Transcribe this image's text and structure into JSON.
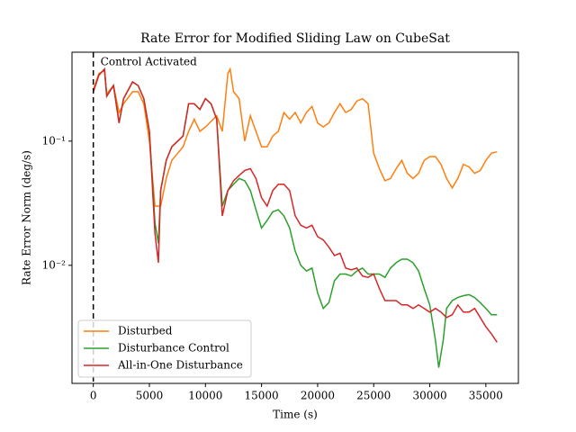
{
  "chart_data": {
    "type": "line",
    "title": "Rate Error for Modified Sliding Law on CubeSat",
    "xlabel": "Time (s)",
    "ylabel": "Rate Error Norm (deg/s)",
    "xlim": [
      -1900,
      37900
    ],
    "ylim": [
      0.00112,
      0.52
    ],
    "yscale": "log",
    "xticks": [
      0,
      5000,
      10000,
      15000,
      20000,
      25000,
      30000,
      35000
    ],
    "yticks": [
      {
        "value": 0.1,
        "label": "10⁻¹"
      },
      {
        "value": 0.01,
        "label": "10⁻²"
      }
    ],
    "annotation": {
      "text": "Control Activated",
      "x": 0
    },
    "legend": "lower left",
    "series": [
      {
        "name": "Disturbed",
        "color": "#ff7f0e",
        "x": [
          0,
          500,
          1000,
          1200,
          1800,
          2300,
          2700,
          3500,
          4000,
          4500,
          5000,
          5500,
          6000,
          6500,
          7000,
          8000,
          8500,
          9000,
          9500,
          10000,
          11000,
          11500,
          12000,
          12200,
          12500,
          13000,
          13500,
          14000,
          14500,
          15000,
          15500,
          16000,
          16500,
          17000,
          17500,
          18000,
          18500,
          19000,
          19500,
          20000,
          20500,
          21000,
          21500,
          22000,
          22500,
          23000,
          23500,
          24000,
          24500,
          25000,
          25500,
          26000,
          26500,
          27000,
          27500,
          28000,
          28500,
          29000,
          29500,
          30000,
          30500,
          31000,
          31500,
          32000,
          32500,
          33000,
          33500,
          34000,
          34500,
          35000,
          35500,
          36000
        ],
        "values": [
          0.26,
          0.35,
          0.37,
          0.24,
          0.28,
          0.17,
          0.2,
          0.25,
          0.25,
          0.2,
          0.1,
          0.03,
          0.03,
          0.05,
          0.07,
          0.09,
          0.12,
          0.15,
          0.12,
          0.13,
          0.16,
          0.12,
          0.35,
          0.38,
          0.25,
          0.22,
          0.1,
          0.16,
          0.12,
          0.09,
          0.09,
          0.11,
          0.12,
          0.17,
          0.15,
          0.17,
          0.14,
          0.17,
          0.19,
          0.14,
          0.13,
          0.14,
          0.17,
          0.2,
          0.17,
          0.18,
          0.21,
          0.22,
          0.2,
          0.08,
          0.06,
          0.048,
          0.05,
          0.06,
          0.07,
          0.055,
          0.05,
          0.055,
          0.07,
          0.075,
          0.075,
          0.065,
          0.05,
          0.042,
          0.05,
          0.065,
          0.062,
          0.055,
          0.058,
          0.07,
          0.08,
          0.082
        ]
      },
      {
        "name": "Disturbance Control",
        "color": "#2ca02c",
        "x": [
          0,
          500,
          1000,
          1200,
          1800,
          2300,
          2700,
          3500,
          4000,
          4500,
          5000,
          5500,
          5800,
          6000,
          6500,
          7000,
          8000,
          8500,
          9000,
          9500,
          10000,
          10500,
          11000,
          11500,
          12000,
          12500,
          13000,
          13500,
          14000,
          14500,
          15000,
          15500,
          16000,
          16500,
          17000,
          17500,
          18000,
          18500,
          19000,
          19500,
          20000,
          20500,
          21000,
          21500,
          22000,
          22500,
          23000,
          23500,
          24000,
          24500,
          25000,
          25500,
          26000,
          26500,
          27000,
          27500,
          28000,
          28500,
          29000,
          29500,
          30000,
          30500,
          30800,
          31200,
          31500,
          32000,
          32500,
          33000,
          33500,
          34000,
          34500,
          35000,
          35500,
          36000
        ],
        "values": [
          0.25,
          0.34,
          0.38,
          0.23,
          0.28,
          0.14,
          0.22,
          0.3,
          0.28,
          0.22,
          0.12,
          0.022,
          0.015,
          0.04,
          0.07,
          0.09,
          0.11,
          0.2,
          0.2,
          0.18,
          0.22,
          0.2,
          0.15,
          0.03,
          0.04,
          0.045,
          0.05,
          0.048,
          0.04,
          0.028,
          0.02,
          0.023,
          0.027,
          0.028,
          0.025,
          0.02,
          0.013,
          0.01,
          0.009,
          0.0095,
          0.006,
          0.0045,
          0.005,
          0.0075,
          0.0085,
          0.0085,
          0.0082,
          0.009,
          0.0095,
          0.0085,
          0.0085,
          0.0085,
          0.008,
          0.0095,
          0.0105,
          0.0112,
          0.0112,
          0.0105,
          0.009,
          0.0065,
          0.0048,
          0.0025,
          0.0015,
          0.0025,
          0.0045,
          0.0052,
          0.0055,
          0.0057,
          0.0058,
          0.0055,
          0.005,
          0.0045,
          0.004,
          0.004
        ]
      },
      {
        "name": "All-in-One Disturbance",
        "color": "#d62728",
        "x": [
          0,
          500,
          1000,
          1200,
          1800,
          2300,
          2700,
          3500,
          4000,
          4500,
          5000,
          5500,
          5800,
          6000,
          6500,
          7000,
          8000,
          8500,
          9000,
          9500,
          10000,
          10500,
          11000,
          11500,
          12000,
          12500,
          13000,
          13500,
          14000,
          14500,
          15000,
          15500,
          16000,
          16500,
          17000,
          17500,
          18000,
          18500,
          19000,
          19500,
          20000,
          20500,
          21000,
          21500,
          22000,
          22500,
          23000,
          23500,
          24000,
          24500,
          25000,
          25500,
          26000,
          26500,
          27000,
          27500,
          28000,
          28500,
          29000,
          29500,
          30000,
          30500,
          31000,
          31500,
          32000,
          32500,
          33000,
          33500,
          34000,
          34500,
          35000,
          35500,
          36000
        ],
        "values": [
          0.25,
          0.34,
          0.38,
          0.23,
          0.28,
          0.14,
          0.22,
          0.3,
          0.28,
          0.22,
          0.12,
          0.018,
          0.0105,
          0.04,
          0.07,
          0.09,
          0.11,
          0.2,
          0.2,
          0.18,
          0.22,
          0.2,
          0.15,
          0.025,
          0.04,
          0.048,
          0.053,
          0.058,
          0.06,
          0.05,
          0.035,
          0.03,
          0.04,
          0.045,
          0.045,
          0.04,
          0.025,
          0.021,
          0.02,
          0.021,
          0.017,
          0.016,
          0.014,
          0.012,
          0.0125,
          0.0095,
          0.0092,
          0.0095,
          0.0082,
          0.008,
          0.0085,
          0.0065,
          0.0052,
          0.0052,
          0.0052,
          0.0048,
          0.0048,
          0.0045,
          0.0048,
          0.0045,
          0.0042,
          0.0045,
          0.0042,
          0.0038,
          0.004,
          0.0048,
          0.0042,
          0.0042,
          0.0045,
          0.0038,
          0.0032,
          0.0028,
          0.0024
        ]
      }
    ]
  }
}
